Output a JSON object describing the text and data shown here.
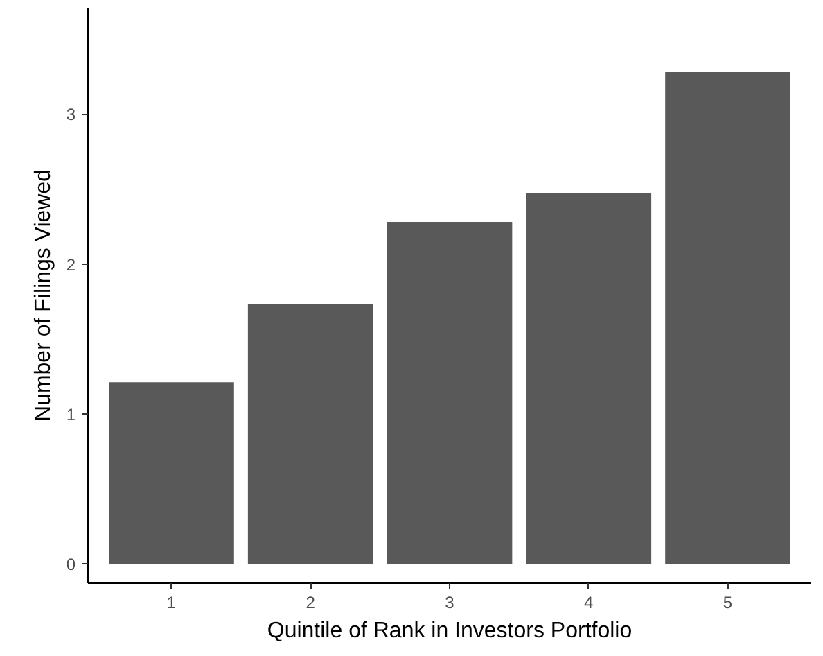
{
  "chart_data": {
    "type": "bar",
    "xlabel": "Quintile of Rank in Investors Portfolio",
    "ylabel": "Number of Filings Viewed",
    "categories": [
      "1",
      "2",
      "3",
      "4",
      "5"
    ],
    "values": [
      1.21,
      1.73,
      2.28,
      2.47,
      3.28
    ],
    "color": "#595959",
    "ylim": [
      -0.13,
      3.71
    ],
    "yticks": [
      0,
      1,
      2,
      3
    ],
    "grid": false
  }
}
